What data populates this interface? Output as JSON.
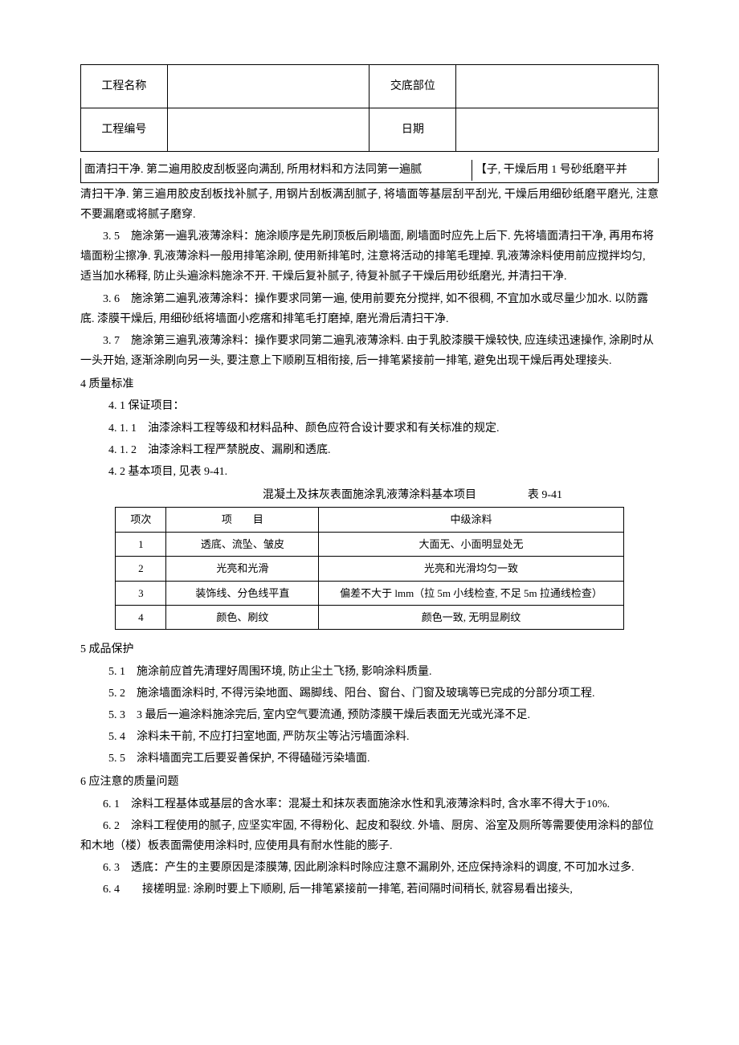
{
  "header": {
    "row1_label1": "工程名称",
    "row1_value1": "",
    "row1_label2": "交底部位",
    "row1_value2": "",
    "row2_label1": "工程编号",
    "row2_value1": "",
    "row2_label2": "日期",
    "row2_value2": ""
  },
  "first_line": {
    "left": "面清扫干净. 第二遍用胶皮刮板竖向满刮, 所用材料和方法同第一遍腻",
    "right": "【子, 干燥后用 1 号砂纸磨平并"
  },
  "paragraphs": {
    "p1": "清扫干净. 第三遍用胶皮刮板找补腻子, 用钢片刮板满刮腻子, 将墙面等基层刮平刮光, 干燥后用细砂纸磨平磨光, 注意不要漏磨或将腻子磨穿.",
    "p3_5": "3. 5　施涂第一遍乳液薄涂料：施涂顺序是先刷顶板后刷墙面, 刷墙面时应先上后下. 先将墙面清扫干净, 再用布将墙面粉尘擦净. 乳液薄涂料一般用排笔涂刷, 使用新排笔时, 注意将活动的排笔毛理掉. 乳液薄涂料使用前应搅拌均匀, 适当加水稀释, 防止头遍涂料施涂不开. 干燥后复补腻子, 待复补腻子干燥后用砂纸磨光, 并清扫干净.",
    "p3_6": "3. 6　施涂第二遍乳液薄涂料：操作要求同第一遍, 使用前要充分搅拌, 如不很稠, 不宜加水或尽量少加水. 以防露底. 漆膜干燥后, 用细砂纸将墙面小疙瘩和排笔毛打磨掉, 磨光滑后清扫干净.",
    "p3_7": "3. 7　施涂第三遍乳液薄涂料：操作要求同第二遍乳液薄涂料. 由于乳胶漆膜干燥较快, 应连续迅速操作, 涂刷时从一头开始, 逐渐涂刷向另一头, 要注意上下顺刷互相衔接, 后一排笔紧接前一排笔, 避免出现干燥后再处理接头."
  },
  "section4": {
    "heading": "4 质量标准",
    "s4_1": "4. 1 保证项目：",
    "s4_1_1": "4. 1. 1　油漆涂料工程等级和材料品种、颜色应符合设计要求和有关标准的规定.",
    "s4_1_2": "4. 1. 2　油漆涂料工程严禁脱皮、漏刷和透底.",
    "s4_2": "4. 2 基本项目, 见表 9-41."
  },
  "table": {
    "title": "混凝土及抹灰表面施涂乳液薄涂料基本项目",
    "number": "表 9-41",
    "headers": {
      "col1": "项次",
      "col2": "项　　目",
      "col3": "中级涂料"
    },
    "rows": [
      {
        "num": "1",
        "item": "透底、流坠、皱皮",
        "spec": "大面无、小面明显处无"
      },
      {
        "num": "2",
        "item": "光亮和光滑",
        "spec": "光亮和光滑均匀一致"
      },
      {
        "num": "3",
        "item": "装饰线、分色线平直",
        "spec": "偏差不大于 lmm（拉 5m 小线检查, 不足 5m 拉通线检查）"
      },
      {
        "num": "4",
        "item": "颜色、刷纹",
        "spec": "颜色一致, 无明显刷纹"
      }
    ]
  },
  "section5": {
    "heading": "5 成品保护",
    "s5_1": "5. 1　施涂前应首先清理好周围环境, 防止尘土飞扬, 影响涂料质量.",
    "s5_2": "5. 2　施涂墙面涂料时, 不得污染地面、踢脚线、阳台、窗台、门窗及玻璃等已完成的分部分项工程.",
    "s5_3": "5. 3　3 最后一遍涂料施涂完后, 室内空气要流通, 预防漆膜干燥后表面无光或光泽不足.",
    "s5_4": "5. 4　涂料未干前, 不应打扫室地面, 严防灰尘等沾污墙面涂料.",
    "s5_5": "5. 5　涂料墙面完工后要妥善保护, 不得磕碰污染墙面."
  },
  "section6": {
    "heading": "6 应注意的质量问题",
    "s6_1": "6. 1　涂料工程基体或基层的含水率：混凝土和抹灰表面施涂水性和乳液薄涂料时, 含水率不得大于10%.",
    "s6_2": "6. 2　涂料工程使用的腻子, 应坚实牢固, 不得粉化、起皮和裂纹. 外墙、厨房、浴室及厕所等需要使用涂料的部位和木地（楼）板表面需使用涂料时, 应使用具有耐水性能的膨子.",
    "s6_3": "6. 3　透底：产生的主要原因是漆膜薄, 因此刷涂料时除应注意不漏刷外, 还应保持涂料的调度, 不可加水过多.",
    "s6_4": "6. 4　　接槎明显: 涂刷时要上下顺刷, 后一排笔紧接前一排笔, 若间隔时间稍长, 就容易看出接头,"
  }
}
